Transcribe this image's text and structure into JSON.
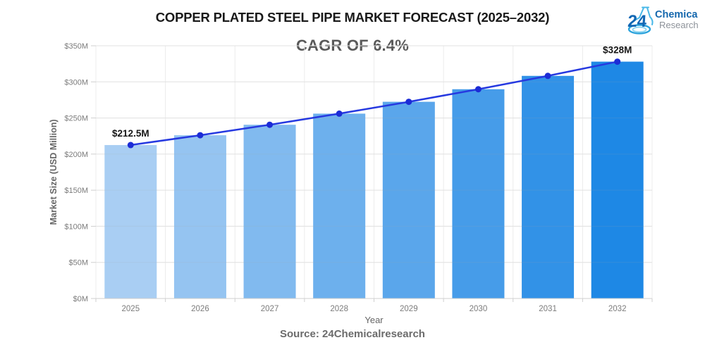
{
  "header": {
    "title": "COPPER PLATED STEEL PIPE MARKET FORECAST (2025–2032)",
    "subtitle": "CAGR OF 6.4%"
  },
  "logo": {
    "number": "24",
    "line1": "Chemical",
    "line2": "Research",
    "number_color": "#1267b4",
    "line1_color": "#1467ad",
    "line2_color": "#8d9299",
    "flask_color": "#2ba3dc"
  },
  "source": "Source: 24Chemicalresearch",
  "chart_data": {
    "type": "bar",
    "title": "COPPER PLATED STEEL PIPE MARKET FORECAST (2025–2032)",
    "subtitle": "CAGR OF 6.4%",
    "categories": [
      "2025",
      "2026",
      "2027",
      "2028",
      "2029",
      "2030",
      "2031",
      "2032"
    ],
    "series": [
      {
        "name": "Market Size",
        "type": "bar",
        "values": [
          212.5,
          226.1,
          240.6,
          256.0,
          272.4,
          289.8,
          308.3,
          328.0
        ]
      },
      {
        "name": "Trend",
        "type": "line",
        "values": [
          212.5,
          226.1,
          240.6,
          256.0,
          272.4,
          289.8,
          308.3,
          328.0
        ]
      }
    ],
    "xlabel": "Year",
    "ylabel": "Market Size (USD Million)",
    "ylim": [
      0,
      350
    ],
    "ytick_step": 50,
    "ytick_labels": [
      "$0M",
      "$50M",
      "$100M",
      "$150M",
      "$200M",
      "$250M",
      "$300M",
      "$350M"
    ],
    "grid": true,
    "legend": false,
    "annotations": [
      {
        "category": "2025",
        "text": "$212.5M"
      },
      {
        "category": "2032",
        "text": "$328M"
      }
    ],
    "bar_colors": [
      "#A9CEF3",
      "#95C4F1",
      "#81BAEF",
      "#6DB0ED",
      "#5AA6EB",
      "#469CE9",
      "#3292E7",
      "#1E88E5"
    ],
    "line_color": "#2639e0",
    "dot_color": "#1c2cd6",
    "grid_color": "#ececec",
    "axis_color": "#cfcfcf",
    "tick_label_color": "#7b7b7b",
    "axis_title_color": "#666666",
    "annotation_color": "#161616"
  }
}
